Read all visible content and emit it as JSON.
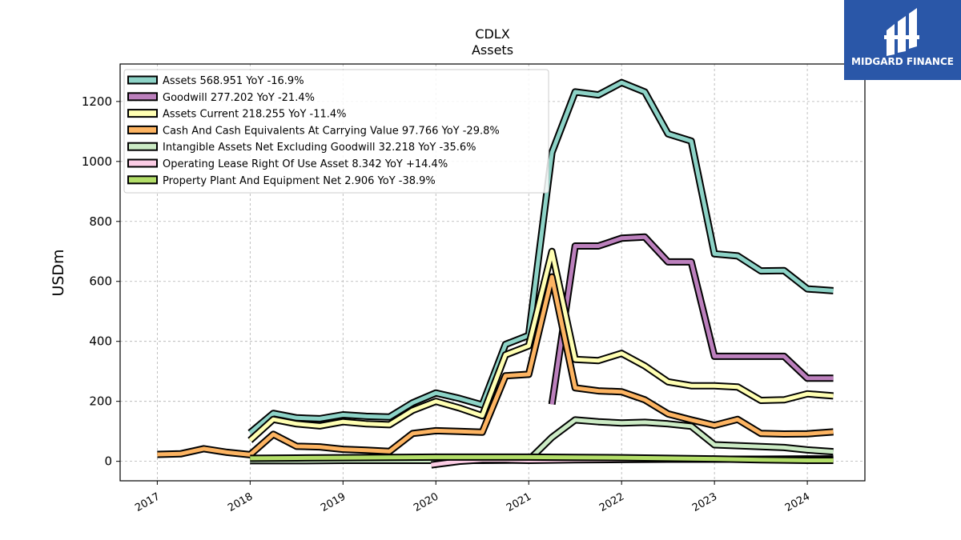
{
  "brand": {
    "name": "MIDGARD FINANCE",
    "bg_color": "#2a57a8"
  },
  "chart_data": {
    "type": "line",
    "title": "CDLX",
    "subtitle": "Assets",
    "xlabel": "",
    "ylabel": "USDm",
    "xlim": [
      2016.6,
      2024.62
    ],
    "ylim": [
      -65,
      1325
    ],
    "x_ticks": [
      2017,
      2018,
      2019,
      2020,
      2021,
      2022,
      2023,
      2024
    ],
    "x_tick_labels": [
      "2017",
      "2018",
      "2019",
      "2020",
      "2021",
      "2022",
      "2023",
      "2024"
    ],
    "y_ticks": [
      0,
      200,
      400,
      600,
      800,
      1000,
      1200
    ],
    "y_tick_labels": [
      "0",
      "200",
      "400",
      "600",
      "800",
      "1000",
      "1200"
    ],
    "grid": true,
    "legend_position": "top-left",
    "series": [
      {
        "name": "Assets  568.951 YoY -16.9%",
        "color": "#8dd3c7",
        "points": [
          [
            2018.0,
            95
          ],
          [
            2018.25,
            160
          ],
          [
            2018.5,
            145
          ],
          [
            2018.75,
            142
          ],
          [
            2019.0,
            155
          ],
          [
            2019.25,
            150
          ],
          [
            2019.5,
            148
          ],
          [
            2019.75,
            195
          ],
          [
            2020.0,
            228
          ],
          [
            2020.25,
            210
          ],
          [
            2020.5,
            188
          ],
          [
            2020.75,
            390
          ],
          [
            2021.0,
            420
          ],
          [
            2021.25,
            1030
          ],
          [
            2021.5,
            1232
          ],
          [
            2021.75,
            1222
          ],
          [
            2022.0,
            1263
          ],
          [
            2022.25,
            1232
          ],
          [
            2022.5,
            1092
          ],
          [
            2022.75,
            1068
          ],
          [
            2023.0,
            692
          ],
          [
            2023.25,
            685
          ],
          [
            2023.5,
            635
          ],
          [
            2023.75,
            636
          ],
          [
            2024.0,
            575
          ],
          [
            2024.28,
            569
          ]
        ]
      },
      {
        "name": "Goodwill  277.202 YoY -21.4%",
        "color": "#bc80bd",
        "points": [
          [
            2021.25,
            190
          ],
          [
            2021.5,
            718
          ],
          [
            2021.75,
            718
          ],
          [
            2022.0,
            744
          ],
          [
            2022.25,
            748
          ],
          [
            2022.5,
            665
          ],
          [
            2022.75,
            665
          ],
          [
            2023.0,
            350
          ],
          [
            2023.25,
            350
          ],
          [
            2023.5,
            350
          ],
          [
            2023.75,
            350
          ],
          [
            2024.0,
            277
          ],
          [
            2024.28,
            277
          ]
        ]
      },
      {
        "name": "Assets Current  218.255 YoY -11.4%",
        "color": "#ffffb3",
        "points": [
          [
            2018.0,
            70
          ],
          [
            2018.25,
            140
          ],
          [
            2018.5,
            125
          ],
          [
            2018.75,
            118
          ],
          [
            2019.0,
            132
          ],
          [
            2019.25,
            125
          ],
          [
            2019.5,
            122
          ],
          [
            2019.75,
            170
          ],
          [
            2020.0,
            200
          ],
          [
            2020.25,
            178
          ],
          [
            2020.5,
            152
          ],
          [
            2020.75,
            355
          ],
          [
            2021.0,
            385
          ],
          [
            2021.25,
            700
          ],
          [
            2021.5,
            340
          ],
          [
            2021.75,
            336
          ],
          [
            2022.0,
            360
          ],
          [
            2022.25,
            318
          ],
          [
            2022.5,
            265
          ],
          [
            2022.75,
            252
          ],
          [
            2023.0,
            252
          ],
          [
            2023.25,
            248
          ],
          [
            2023.5,
            203
          ],
          [
            2023.75,
            205
          ],
          [
            2024.0,
            225
          ],
          [
            2024.28,
            218
          ]
        ]
      },
      {
        "name": "Cash And Cash Equivalents At Carrying Value  97.766 YoY -29.8%",
        "color": "#fdb462",
        "points": [
          [
            2017.0,
            23
          ],
          [
            2017.25,
            25
          ],
          [
            2017.5,
            42
          ],
          [
            2017.75,
            30
          ],
          [
            2018.0,
            22
          ],
          [
            2018.25,
            90
          ],
          [
            2018.5,
            50
          ],
          [
            2018.75,
            48
          ],
          [
            2019.0,
            40
          ],
          [
            2019.25,
            37
          ],
          [
            2019.5,
            33
          ],
          [
            2019.75,
            93
          ],
          [
            2020.0,
            102
          ],
          [
            2020.25,
            100
          ],
          [
            2020.5,
            97
          ],
          [
            2020.75,
            285
          ],
          [
            2021.0,
            290
          ],
          [
            2021.25,
            615
          ],
          [
            2021.5,
            245
          ],
          [
            2021.75,
            235
          ],
          [
            2022.0,
            232
          ],
          [
            2022.25,
            205
          ],
          [
            2022.5,
            158
          ],
          [
            2022.75,
            138
          ],
          [
            2023.0,
            120
          ],
          [
            2023.25,
            140
          ],
          [
            2023.5,
            93
          ],
          [
            2023.75,
            91
          ],
          [
            2024.0,
            92
          ],
          [
            2024.28,
            98
          ]
        ]
      },
      {
        "name": "Intangible Assets Net Excluding Goodwill  32.218 YoY -35.6%",
        "color": "#ccebc5",
        "points": [
          [
            2018.0,
            2
          ],
          [
            2018.5,
            2
          ],
          [
            2019.0,
            3
          ],
          [
            2019.5,
            3
          ],
          [
            2020.0,
            3
          ],
          [
            2020.5,
            3
          ],
          [
            2021.0,
            4
          ],
          [
            2021.25,
            80
          ],
          [
            2021.5,
            138
          ],
          [
            2021.75,
            132
          ],
          [
            2022.0,
            128
          ],
          [
            2022.25,
            130
          ],
          [
            2022.5,
            125
          ],
          [
            2022.75,
            117
          ],
          [
            2023.0,
            55
          ],
          [
            2023.25,
            52
          ],
          [
            2023.5,
            49
          ],
          [
            2023.75,
            46
          ],
          [
            2024.0,
            38
          ],
          [
            2024.28,
            32
          ]
        ]
      },
      {
        "name": "Operating Lease Right Of Use Asset  8.342 YoY +14.4%",
        "color": "#fccde5",
        "points": [
          [
            2019.95,
            -12
          ],
          [
            2020.25,
            0
          ],
          [
            2020.5,
            5
          ],
          [
            2020.75,
            5
          ],
          [
            2021.0,
            3
          ],
          [
            2021.5,
            5
          ],
          [
            2022.0,
            6
          ],
          [
            2022.5,
            7
          ],
          [
            2023.0,
            7
          ],
          [
            2023.5,
            7
          ],
          [
            2024.0,
            8
          ],
          [
            2024.28,
            8
          ]
        ]
      },
      {
        "name": "Property Plant And Equipment Net  2.906 YoY -38.9%",
        "color": "#b3de69",
        "points": [
          [
            2018.0,
            10
          ],
          [
            2018.5,
            11
          ],
          [
            2019.0,
            12
          ],
          [
            2019.5,
            13
          ],
          [
            2020.0,
            14
          ],
          [
            2020.5,
            14
          ],
          [
            2021.0,
            14
          ],
          [
            2021.5,
            13
          ],
          [
            2022.0,
            12
          ],
          [
            2022.5,
            10
          ],
          [
            2023.0,
            8
          ],
          [
            2023.5,
            5
          ],
          [
            2024.0,
            3
          ],
          [
            2024.28,
            3
          ]
        ]
      }
    ]
  }
}
